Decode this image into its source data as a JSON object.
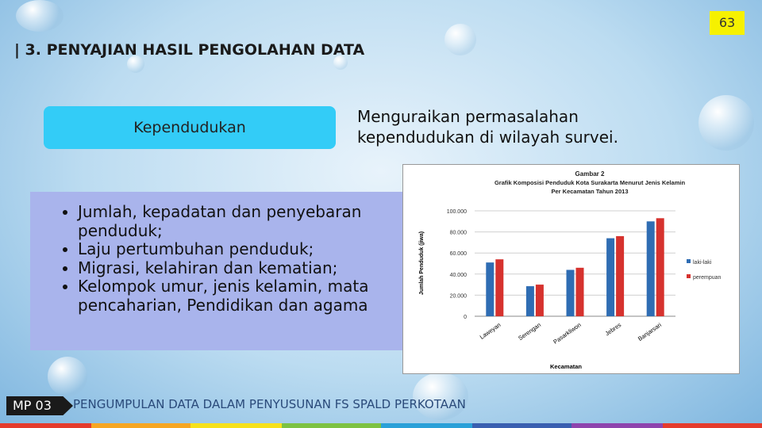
{
  "page_number": "63",
  "header": {
    "title": "| 3. PENYAJIAN HASIL PENGOLAHAN DATA"
  },
  "topic": {
    "label": "Kependudukan",
    "description": "Menguraikan permasalahan kependudukan di wilayah survei."
  },
  "bullets": [
    "Jumlah, kepadatan dan penyebaran penduduk;",
    "Laju pertumbuhan penduduk;",
    "Migrasi, kelahiran dan kematian;",
    "Kelompok umur, jenis kelamin, mata pencaharian, Pendidikan dan agama"
  ],
  "chart": {
    "type": "bar",
    "title": [
      "Gambar 2",
      "Grafik Komposisi Penduduk Kota Surakarta Menurut Jenis Kelamin",
      "Per Kecamatan Tahun 2013"
    ],
    "y_label": "Jumlah Penduduk (jiwa)",
    "x_label": "Kecamatan",
    "categories": [
      "Laweyan",
      "Serengan",
      "Pasarkliwon",
      "Jebres",
      "Banjarsari"
    ],
    "series": [
      {
        "name": "laki-laki",
        "color": "#2f6db3",
        "values": [
          51000,
          28500,
          44000,
          74000,
          90000
        ]
      },
      {
        "name": "perempuan",
        "color": "#d6322e",
        "values": [
          54000,
          30000,
          46000,
          76000,
          93000
        ]
      }
    ],
    "ylim": [
      0,
      100000
    ],
    "yticks": [
      0,
      {
        "value": 20000,
        "label": "20.000"
      },
      {
        "value": 40000,
        "label": "40.000"
      },
      {
        "value": 60000,
        "label": "60.000"
      },
      {
        "value": 80000,
        "label": "80.000"
      },
      {
        "value": 100000,
        "label": "100.000"
      }
    ],
    "grid": true
  },
  "footer": {
    "code": "MP 03",
    "text": "PENGUMPULAN DATA DALAM PENYUSUNAN FS SPALD PERKOTAAN"
  }
}
